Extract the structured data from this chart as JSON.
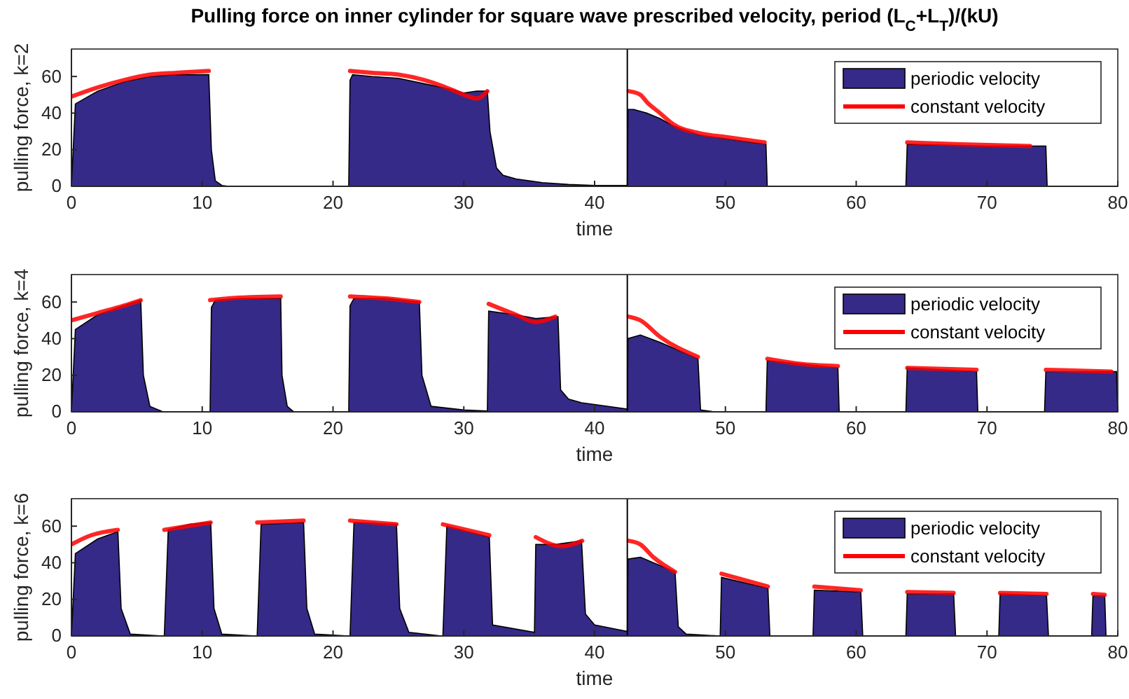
{
  "chart_data": [
    {
      "type": "area",
      "title": "Pulling force on inner cylinder for square wave prescribed velocity, period (L$_{C}$+L$_{T}$)/(kU)",
      "xlabel": "time",
      "ylabel": "pulling force, k=2",
      "xlim": [
        0,
        80
      ],
      "ylim": [
        0,
        75
      ],
      "xticks": [
        0,
        10,
        20,
        30,
        40,
        50,
        60,
        70,
        80
      ],
      "yticks": [
        0,
        20,
        40,
        60
      ],
      "legend": "top right",
      "grid": false,
      "ref_lines": [
        {
          "axis": "x",
          "value": 42.5,
          "color": "#000000"
        }
      ],
      "series": [
        {
          "name": "periodic velocity",
          "color": "#352a87",
          "x": [
            0,
            0.3,
            2,
            4,
            6,
            8,
            10,
            10.5,
            10.7,
            11,
            11.5,
            12,
            21.2,
            21.3,
            21.5,
            23,
            25,
            27,
            29,
            30,
            31,
            31.8,
            32,
            32.5,
            33,
            34,
            36,
            38,
            40,
            42.5,
            42.55,
            43,
            44,
            45,
            46,
            48,
            50,
            52,
            53.1,
            53.2,
            63.8,
            63.9,
            70,
            74.5,
            74.6,
            80
          ],
          "values": [
            0,
            45,
            52,
            57,
            60,
            61,
            61,
            61,
            20,
            3,
            0.5,
            0,
            0,
            58,
            61,
            60,
            59,
            56,
            53,
            51,
            52,
            52,
            30,
            10,
            6,
            4,
            2,
            1,
            0.5,
            0.5,
            42,
            42,
            40,
            37,
            33,
            28,
            26,
            24,
            23,
            0,
            0,
            23,
            22,
            22,
            0,
            0
          ]
        },
        {
          "name": "constant velocity",
          "type": "line",
          "color": "#ff0000",
          "x": [
            0,
            2,
            4,
            6,
            8,
            10.5,
            16,
            21.3,
            23,
            25,
            27,
            29,
            30,
            31,
            31.8,
            37,
            42.6,
            43.5,
            44,
            45,
            46,
            48,
            50,
            53,
            58,
            63.9,
            68,
            73.3
          ],
          "values": [
            49,
            54,
            58,
            61,
            62,
            63,
            null,
            63,
            62,
            61,
            58,
            53,
            50,
            48,
            52,
            null,
            52,
            50,
            46,
            40,
            34,
            29,
            27,
            24,
            null,
            24,
            23,
            22
          ]
        }
      ]
    },
    {
      "type": "area",
      "xlabel": "time",
      "ylabel": "pulling force, k=4",
      "xlim": [
        0,
        80
      ],
      "ylim": [
        0,
        75
      ],
      "xticks": [
        0,
        10,
        20,
        30,
        40,
        50,
        60,
        70,
        80
      ],
      "yticks": [
        0,
        20,
        40,
        60
      ],
      "legend": "top right",
      "grid": false,
      "ref_lines": [
        {
          "axis": "x",
          "value": 42.5,
          "color": "#000000"
        }
      ],
      "series": [
        {
          "name": "periodic velocity",
          "color": "#352a87",
          "x": [
            0,
            0.3,
            2,
            4,
            5.3,
            5.5,
            6,
            7,
            10.6,
            10.7,
            11,
            13,
            16,
            16.1,
            16.5,
            17,
            21.2,
            21.3,
            21.6,
            24,
            26.6,
            26.8,
            27.5,
            30,
            31.8,
            31.9,
            34,
            35.5,
            37.2,
            37.4,
            38,
            39,
            42.5,
            42.55,
            43.5,
            45,
            47.9,
            48.1,
            49,
            53.1,
            53.2,
            58.6,
            58.7,
            63.8,
            63.9,
            69.2,
            69.3,
            74.4,
            74.5,
            79.9,
            80
          ],
          "values": [
            0,
            45,
            53,
            58,
            61,
            20,
            3,
            0,
            0,
            57,
            61,
            62,
            62,
            20,
            3,
            0,
            0,
            58,
            62,
            62,
            60,
            20,
            3,
            1,
            0.5,
            55,
            53,
            51,
            52,
            12,
            7,
            5,
            1.5,
            40,
            42,
            38,
            29,
            1,
            0.2,
            0,
            28,
            24,
            0,
            0,
            24,
            22,
            0,
            0,
            22,
            22,
            0
          ]
        },
        {
          "name": "constant velocity",
          "type": "line",
          "color": "#ff0000",
          "x": [
            0,
            2,
            4,
            5.3,
            8,
            10.6,
            12,
            16,
            18,
            21.3,
            24,
            26.6,
            29,
            31.9,
            34,
            35.5,
            37,
            40,
            42.6,
            43.5,
            45,
            47.9,
            50,
            53.2,
            56,
            58.6,
            61,
            63.9,
            69.2,
            72,
            74.5,
            79.5
          ],
          "values": [
            50,
            54,
            58,
            61,
            null,
            61,
            62,
            63,
            null,
            63,
            62,
            60,
            null,
            59,
            53,
            49,
            52,
            null,
            52,
            50,
            41,
            30,
            null,
            29,
            26,
            25,
            null,
            24,
            23,
            null,
            23,
            22
          ]
        }
      ]
    },
    {
      "type": "area",
      "xlabel": "time",
      "ylabel": "pulling force, k=6",
      "xlim": [
        0,
        80
      ],
      "ylim": [
        0,
        75
      ],
      "xticks": [
        0,
        10,
        20,
        30,
        40,
        50,
        60,
        70,
        80
      ],
      "yticks": [
        0,
        20,
        40,
        60
      ],
      "legend": "top right",
      "grid": false,
      "ref_lines": [
        {
          "axis": "x",
          "value": 42.5,
          "color": "#000000"
        }
      ],
      "series": [
        {
          "name": "periodic velocity",
          "color": "#352a87",
          "x": [
            0,
            0.3,
            2,
            3.55,
            3.8,
            4.5,
            7.0,
            7.1,
            7.4,
            9,
            10.65,
            10.9,
            11.5,
            14.1,
            14.2,
            14.5,
            17.75,
            18,
            18.6,
            21.2,
            21.3,
            21.6,
            24.85,
            25.1,
            25.8,
            28.3,
            28.4,
            28.7,
            31.95,
            32.2,
            35.4,
            35.5,
            37,
            39,
            39.3,
            40,
            42.5,
            42.55,
            43.5,
            46.15,
            46.4,
            47,
            49.6,
            49.7,
            53.25,
            53.4,
            56.7,
            56.8,
            60.35,
            60.5,
            63.8,
            63.9,
            67.45,
            67.6,
            70.9,
            71,
            74.55,
            74.7,
            78,
            78.1,
            79,
            79.1,
            80
          ],
          "values": [
            0,
            45,
            53,
            57,
            15,
            1,
            0,
            0,
            58,
            61,
            62,
            15,
            1,
            0,
            0,
            61,
            62,
            15,
            1,
            0,
            0,
            62,
            61,
            15,
            2,
            0,
            0,
            60,
            54,
            6,
            2,
            50,
            50,
            52,
            12,
            6,
            2.5,
            42,
            43,
            35,
            5,
            1,
            0,
            32,
            26,
            0,
            0,
            25,
            24,
            0,
            0,
            23,
            23,
            0,
            0,
            23,
            22,
            0,
            0,
            22,
            22,
            0,
            0
          ]
        },
        {
          "name": "constant velocity",
          "type": "line",
          "color": "#ff0000",
          "x": [
            0,
            1.5,
            3.55,
            5,
            7.1,
            10.65,
            12,
            14.2,
            17.75,
            19,
            21.3,
            24.85,
            26,
            28.4,
            31.95,
            33,
            35.5,
            37.5,
            39.05,
            41,
            42.6,
            43.5,
            44.5,
            46.15,
            48,
            49.7,
            53.25,
            55,
            56.8,
            60.35,
            62,
            63.9,
            67.45,
            69,
            71,
            74.55,
            76,
            78.1,
            79
          ],
          "values": [
            50,
            55,
            58,
            null,
            58,
            62,
            null,
            62,
            63,
            null,
            63,
            61,
            null,
            61,
            55,
            null,
            54,
            49,
            52,
            null,
            52,
            50,
            43,
            35,
            null,
            34,
            27,
            null,
            27,
            25,
            null,
            24,
            23.5,
            null,
            23.5,
            23,
            null,
            23,
            22.5
          ]
        }
      ]
    }
  ]
}
